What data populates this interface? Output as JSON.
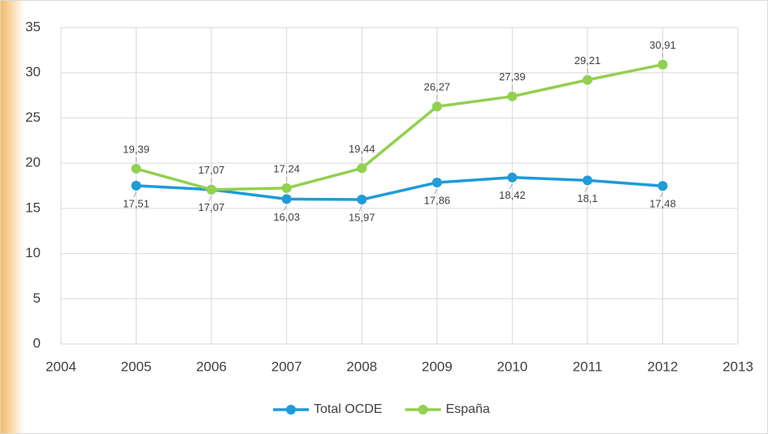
{
  "chart_data": {
    "type": "line",
    "x": [
      2005,
      2006,
      2007,
      2008,
      2009,
      2010,
      2011,
      2012
    ],
    "series": [
      {
        "name": "Total OCDE",
        "color": "#1f9bd7",
        "values": [
          17.51,
          17.07,
          16.03,
          15.97,
          17.86,
          18.42,
          18.1,
          17.48
        ],
        "value_labels": [
          "17,51",
          "17,07",
          "16,03",
          "15,97",
          "17,86",
          "18,42",
          "18,1",
          "17,48"
        ]
      },
      {
        "name": "España",
        "color": "#92d050",
        "values": [
          19.39,
          17.07,
          17.24,
          19.44,
          26.27,
          27.39,
          29.21,
          30.91
        ],
        "value_labels": [
          "19,39",
          "17,07",
          "17,24",
          "19,44",
          "26,27",
          "27,39",
          "29,21",
          "30,91"
        ]
      }
    ],
    "xlim": [
      2004,
      2013
    ],
    "xticks": [
      2004,
      2005,
      2006,
      2007,
      2008,
      2009,
      2010,
      2011,
      2012,
      2013
    ],
    "ylim": [
      0,
      35
    ],
    "yticks": [
      0,
      5,
      10,
      15,
      20,
      25,
      30,
      35
    ],
    "grid": true,
    "legend": "bottom"
  }
}
